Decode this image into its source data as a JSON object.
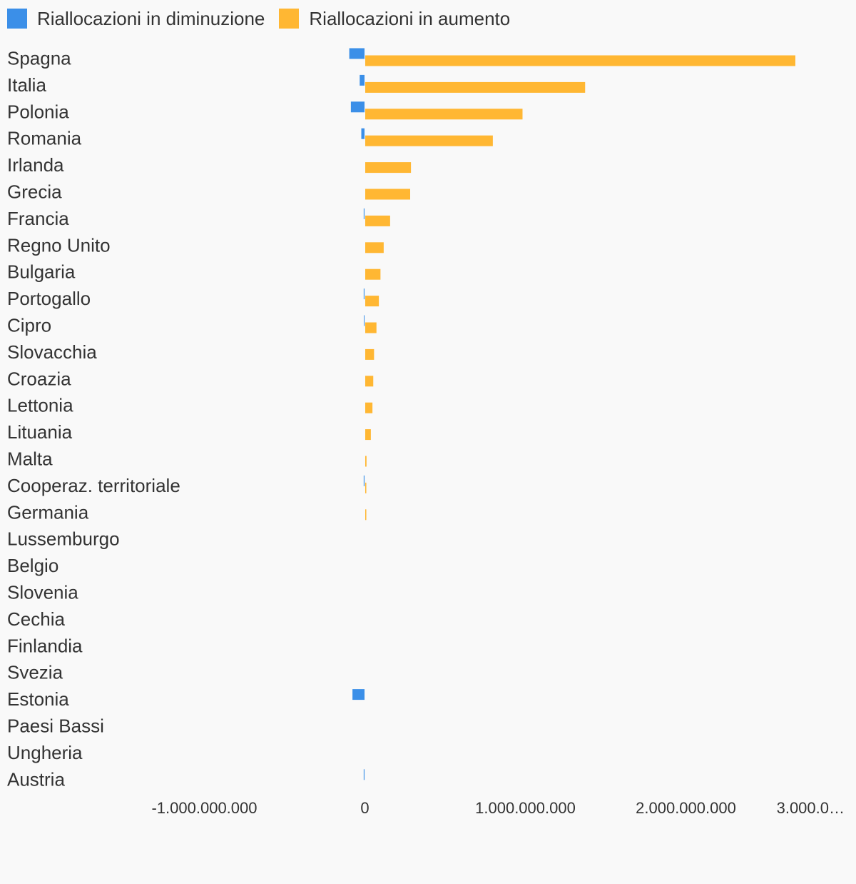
{
  "legend": {
    "decrease_label": "Riallocazioni in diminuzione",
    "increase_label": "Riallocazioni in aumento"
  },
  "colors": {
    "decrease": "#3b8fe8",
    "increase": "#ffb733",
    "background": "#f9f9f9",
    "text": "#333333"
  },
  "chart_data": {
    "type": "bar",
    "orientation": "horizontal",
    "categories": [
      "Spagna",
      "Italia",
      "Polonia",
      "Romania",
      "Irlanda",
      "Grecia",
      "Francia",
      "Regno Unito",
      "Bulgaria",
      "Portogallo",
      "Cipro",
      "Slovacchia",
      "Croazia",
      "Lettonia",
      "Lituania",
      "Malta",
      "Cooperaz. territoriale",
      "Germania",
      "Lussemburgo",
      "Belgio",
      "Slovenia",
      "Cechia",
      "Finlandia",
      "Svezia",
      "Estonia",
      "Paesi Bassi",
      "Ungheria",
      "Austria"
    ],
    "series": [
      {
        "name": "Riallocazioni in diminuzione",
        "values": [
          -95000000,
          -30000000,
          -85000000,
          -20000000,
          0,
          0,
          -5000000,
          0,
          0,
          -5000000,
          -2000000,
          0,
          0,
          0,
          0,
          0,
          -5000000,
          0,
          0,
          0,
          0,
          0,
          0,
          0,
          -75000000,
          0,
          0,
          -5000000
        ]
      },
      {
        "name": "Riallocazioni in aumento",
        "values": [
          2680000000,
          1370000000,
          980000000,
          795000000,
          285000000,
          280000000,
          155000000,
          115000000,
          95000000,
          85000000,
          70000000,
          55000000,
          50000000,
          45000000,
          35000000,
          8000000,
          5000000,
          2000000,
          0,
          0,
          0,
          0,
          0,
          0,
          0,
          0,
          0,
          0
        ]
      }
    ],
    "tick_labels": [
      "-1.000.000.000",
      "0",
      "1.000.000.000",
      "2.000.000.000",
      "3.000.0…"
    ],
    "tick_values": [
      -1000000000,
      0,
      1000000000,
      2000000000,
      3000000000
    ],
    "xlim": [
      -1000000000,
      3000000000
    ],
    "grid": false,
    "legend_position": "top-left"
  }
}
